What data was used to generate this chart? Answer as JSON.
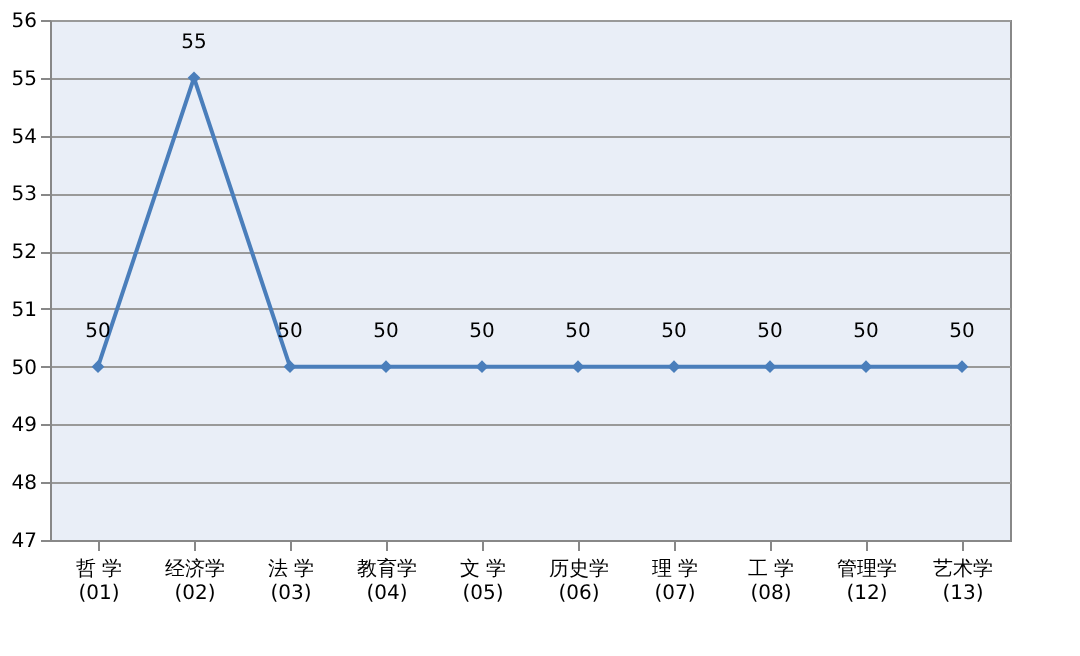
{
  "chart_data": {
    "type": "line",
    "categories": [
      "哲 学(01)",
      "经济学(02)",
      "法 学(03)",
      "教育学(04)",
      "文 学(05)",
      "历史学(06)",
      "理 学(07)",
      "工 学(08)",
      "管理学(12)",
      "艺术学(13)"
    ],
    "series": [
      {
        "color": "#4a7ebb",
        "values": [
          50,
          55,
          50,
          50,
          50,
          50,
          50,
          50,
          50,
          50
        ]
      }
    ],
    "ylim": [
      47,
      56
    ],
    "yticks": [
      47,
      48,
      49,
      50,
      51,
      52,
      53,
      54,
      55,
      56
    ],
    "grid": "y",
    "marker": "diamond",
    "line_style": "solid",
    "data_labels": true,
    "legend": false
  }
}
